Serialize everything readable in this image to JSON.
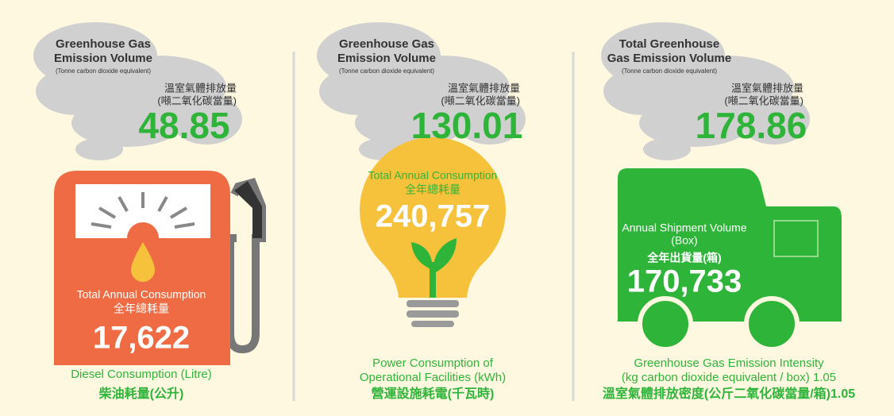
{
  "panels": [
    {
      "cloud": {
        "title": [
          "Greenhouse Gas",
          "Emission Volume"
        ],
        "unit": "(Tonne carbon dioxide equivalent)",
        "title_zh": "溫室氣體排放量",
        "unit_zh": "(噸二氧化碳當量)",
        "value": "48.85"
      },
      "icon": {
        "label": [
          "Total Annual Consumption"
        ],
        "label_zh": "全年總耗量",
        "value": "17,622"
      },
      "caption": [
        "Diesel Consumption (Litre)",
        "柴油耗量(公升)"
      ]
    },
    {
      "cloud": {
        "title": [
          "Greenhouse Gas",
          "Emission Volume"
        ],
        "unit": "(Tonne carbon dioxide equivalent)",
        "title_zh": "溫室氣體排放量",
        "unit_zh": "(噸二氧化碳當量)",
        "value": "130.01"
      },
      "icon": {
        "label": [
          "Total Annual Consumption"
        ],
        "label_zh": "全年總耗量",
        "value": "240,757"
      },
      "caption": [
        "Power Consumption of",
        "Operational Facilities (kWh)",
        "營運設施耗電(千瓦時)"
      ]
    },
    {
      "cloud": {
        "title": [
          "Total Greenhouse",
          "Gas Emission Volume"
        ],
        "unit": "(Tonne carbon dioxide equivalent)",
        "title_zh": "溫室氣體排放量",
        "unit_zh": "(噸二氧化碳當量)",
        "value": "178.86"
      },
      "icon": {
        "label": [
          "Annual Shipment Volume",
          "(Box)"
        ],
        "label_zh": "全年出貨量(箱)",
        "value": "170,733"
      },
      "caption": [
        "Greenhouse Gas Emission Intensity",
        "(kg carbon dioxide equivalent / box) 1.05",
        "溫室氣體排放密度(公斤二氧化碳當量/箱)1.05"
      ]
    }
  ]
}
